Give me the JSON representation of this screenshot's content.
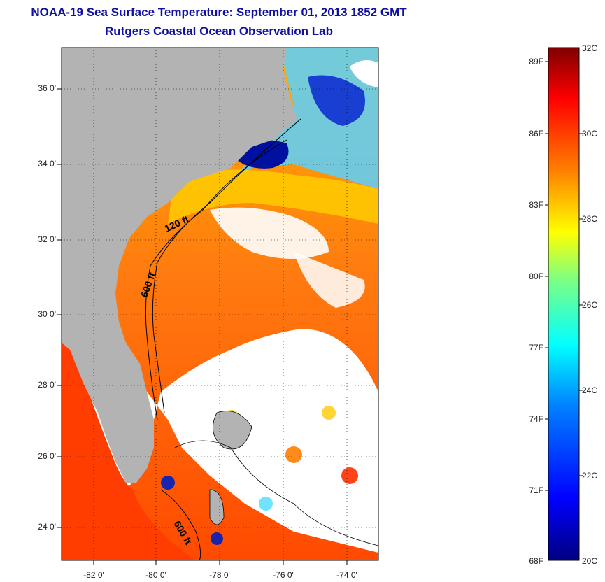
{
  "title_line1": "NOAA-19 Sea Surface Temperature:  September 01, 2013 1852 GMT",
  "title_line2": "Rutgers Coastal Ocean Observation Lab",
  "map": {
    "lat_labels": [
      "36 0'",
      "34 0'",
      "32 0'",
      "30 0'",
      "28 0'",
      "26 0'",
      "24 0'"
    ],
    "lon_labels": [
      "-82 0'",
      "-80 0'",
      "-78 0'",
      "-76 0'",
      "-74 0'"
    ],
    "lat_range": [
      23,
      37.2
    ],
    "lon_range": [
      -83,
      -73
    ],
    "isobath_labels": [
      "120 ft",
      "600 ft",
      "600 ft"
    ],
    "land_color": "#b3b3b3",
    "cloud_color": "#ffffff"
  },
  "colorbar": {
    "fahrenheit_labels": [
      "89F",
      "86F",
      "83F",
      "80F",
      "77F",
      "74F",
      "71F",
      "68F"
    ],
    "celsius_labels": [
      "32C",
      "30C",
      "28C",
      "26C",
      "24C",
      "22C",
      "20C"
    ],
    "range_c": [
      20,
      32
    ],
    "colors": [
      "#000080",
      "#0000ff",
      "#0080ff",
      "#00ffff",
      "#80ff80",
      "#ffff00",
      "#ff8000",
      "#ff0000",
      "#800000"
    ]
  }
}
